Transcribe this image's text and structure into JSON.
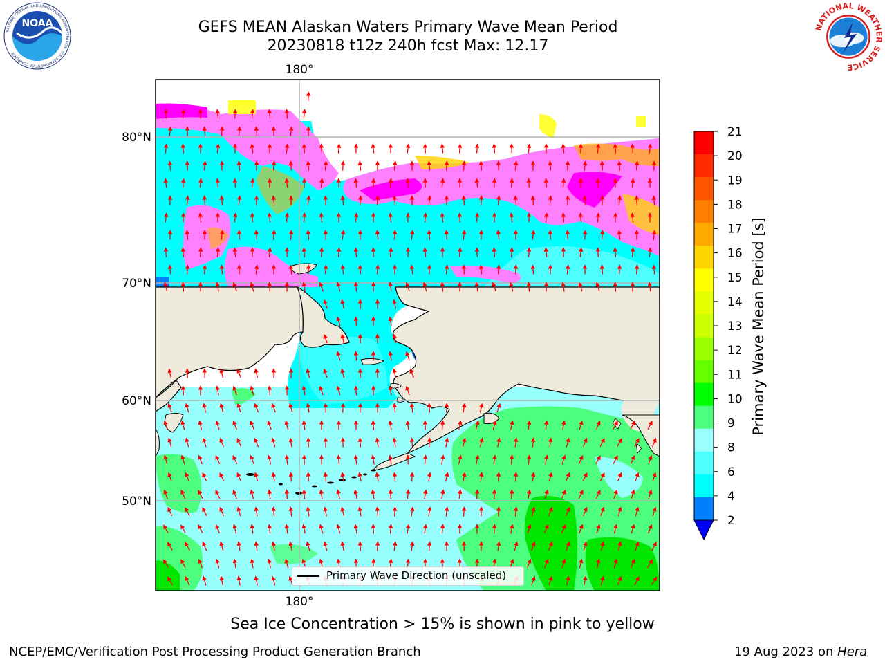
{
  "title": {
    "line1": "GEFS MEAN Alaskan Waters Primary Wave Mean Period",
    "line2": "20230818 t12z 240h fcst   Max: 12.17"
  },
  "logos": {
    "left": "NOAA",
    "left_ring": "NATIONAL OCEANIC AND ATMOSPHERIC ADMINISTRATION · U.S. DEPARTMENT OF COMMERCE",
    "right_ring": "NATIONAL WEATHER SERVICE"
  },
  "map": {
    "lon_label_top": "180°",
    "lon_label_bottom": "180°",
    "lat_labels": [
      "80°N",
      "70°N",
      "60°N",
      "50°N"
    ],
    "legend_label": "Primary Wave Direction (unscaled)",
    "colors": {
      "land": "#efebdc",
      "ocean_cyan": "#00ffff",
      "ocean_light": "#98ffff",
      "ocean_green": "#4dff7e",
      "ocean_green_dark": "#00e600",
      "ocean_blue": "#0080ff",
      "ice_pink": "#ff80ff",
      "ice_magenta": "#ff00ff",
      "ice_yellow": "#ffff33",
      "ice_orange": "#ffb000",
      "arrow": "#ff0000",
      "grid": "#b0b0b0"
    }
  },
  "colorbar": {
    "title": "Primary Wave Mean Period [s]",
    "ticks": [
      "21",
      "20",
      "19",
      "18",
      "17",
      "16",
      "15",
      "14",
      "13",
      "12",
      "11",
      "10",
      "9",
      "8",
      "6",
      "4",
      "2"
    ],
    "colors": [
      "#ff0000",
      "#ff2a00",
      "#ff5500",
      "#ff8000",
      "#ffaa00",
      "#ffd500",
      "#ffff00",
      "#e6ff00",
      "#ccff00",
      "#99ff00",
      "#66ff00",
      "#00ff00",
      "#4dff7e",
      "#99ffff",
      "#4dffff",
      "#00ffff",
      "#0080ff"
    ],
    "extend_color": "#0000ff"
  },
  "notes": {
    "ice": "Sea Ice Concentration > 15% is shown in pink to yellow"
  },
  "footer": {
    "left": "NCEP/EMC/Verification Post Processing Product Generation Branch",
    "date": "19 Aug 2023 on ",
    "host": "Hera"
  }
}
